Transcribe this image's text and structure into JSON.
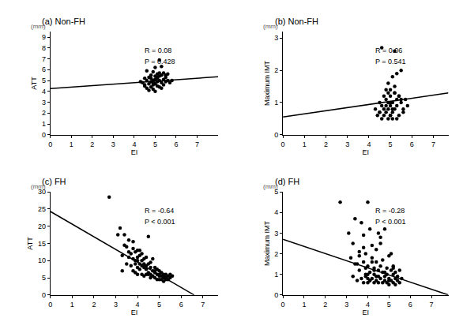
{
  "chart_data": [
    {
      "type": "scatter",
      "title": "(a) Non-FH",
      "x_label": "EI",
      "y_label": "ATT",
      "y_unit": "(mm)",
      "annotations": [
        "R = 0.08",
        "P = 0.428"
      ],
      "xlim": [
        0,
        8
      ],
      "xticks": [
        0,
        1,
        2,
        3,
        4,
        5,
        6,
        7
      ],
      "ylim": [
        0,
        9.5
      ],
      "yticks": [
        0,
        1,
        2,
        3,
        4,
        5,
        6,
        7,
        8,
        9
      ],
      "series": [
        {
          "type": "scatter",
          "marker": "circle",
          "color": "#000000",
          "x": [
            4.3,
            4.4,
            4.5,
            4.5,
            4.6,
            4.6,
            4.7,
            4.7,
            4.7,
            4.8,
            4.8,
            4.8,
            4.9,
            4.9,
            4.9,
            4.9,
            5.0,
            5.0,
            5.0,
            5.0,
            5.1,
            5.1,
            5.1,
            5.1,
            5.2,
            5.2,
            5.2,
            5.3,
            5.3,
            5.3,
            5.4,
            5.4,
            5.5,
            5.5,
            5.6,
            5.6,
            5.7,
            5.8,
            4.6,
            5.0,
            5.2,
            4.8,
            5.3,
            5.1,
            4.9,
            5.4,
            4.5,
            5.0,
            5.2,
            5.5
          ],
          "values": [
            4.9,
            4.8,
            5.2,
            4.5,
            5.0,
            4.3,
            4.7,
            5.3,
            4.1,
            4.9,
            5.5,
            4.4,
            5.0,
            4.6,
            5.8,
            4.2,
            5.1,
            4.7,
            5.4,
            6.2,
            4.9,
            5.6,
            4.5,
            5.2,
            5.0,
            5.7,
            4.4,
            4.8,
            5.5,
            6.3,
            5.1,
            4.6,
            5.3,
            4.9,
            5.0,
            5.6,
            4.8,
            5.0,
            5.9,
            4.0,
            6.9,
            5.2,
            4.3,
            5.3,
            4.8,
            5.7,
            4.6,
            5.1,
            5.4,
            5.5
          ]
        },
        {
          "type": "line",
          "line_style": "solid",
          "color": "#000000",
          "x": [
            0,
            8
          ],
          "values": [
            4.25,
            5.35
          ]
        }
      ]
    },
    {
      "type": "scatter",
      "title": "(b) Non-FH",
      "x_label": "EI",
      "y_label": "Maximum IMT",
      "y_unit": "(mm)",
      "annotations": [
        "R = 0.06",
        "P = 0.541"
      ],
      "xlim": [
        0,
        7.7
      ],
      "xticks": [
        0,
        1,
        2,
        3,
        4,
        5,
        6,
        7
      ],
      "ylim": [
        0,
        3.2
      ],
      "yticks": [
        0,
        1,
        2,
        3
      ],
      "series": [
        {
          "type": "scatter",
          "marker": "circle",
          "color": "#000000",
          "x": [
            4.3,
            4.4,
            4.5,
            4.5,
            4.6,
            4.6,
            4.7,
            4.7,
            4.7,
            4.8,
            4.8,
            4.8,
            4.9,
            4.9,
            4.9,
            4.9,
            5.0,
            5.0,
            5.0,
            5.0,
            5.1,
            5.1,
            5.1,
            5.1,
            5.2,
            5.2,
            5.2,
            5.3,
            5.3,
            5.3,
            5.4,
            5.4,
            5.5,
            5.5,
            5.6,
            5.6,
            5.7,
            5.8,
            4.6,
            5.0,
            5.2,
            4.8,
            5.3,
            5.1,
            4.9,
            5.4,
            4.5,
            5.0,
            5.2,
            5.5
          ],
          "values": [
            0.8,
            0.6,
            1.0,
            0.7,
            0.9,
            0.5,
            1.2,
            0.8,
            0.6,
            1.1,
            0.9,
            0.7,
            1.3,
            0.5,
            1.0,
            0.8,
            1.4,
            0.6,
            1.2,
            0.9,
            1.8,
            0.7,
            1.0,
            0.5,
            1.3,
            2.6,
            0.8,
            1.1,
            0.9,
            1.9,
            0.6,
            1.2,
            1.0,
            2.0,
            0.7,
            0.8,
            1.1,
            0.9,
            2.7,
            0.6,
            1.5,
            1.4,
            0.5,
            0.8,
            1.6,
            1.2,
            0.7,
            1.0,
            1.3,
            1.1
          ]
        },
        {
          "type": "line",
          "line_style": "solid",
          "color": "#000000",
          "x": [
            0,
            7.7
          ],
          "values": [
            0.55,
            1.3
          ]
        }
      ]
    },
    {
      "type": "scatter",
      "title": "(c) FH",
      "x_label": "EI",
      "y_label": "ATT",
      "y_unit": "(mm)",
      "annotations": [
        "R = -0.64",
        "P < 0.001"
      ],
      "xlim": [
        0,
        7.7
      ],
      "xticks": [
        0,
        1,
        2,
        3,
        4,
        5,
        6,
        7
      ],
      "ylim": [
        0,
        30
      ],
      "yticks": [
        0,
        5,
        10,
        15,
        20,
        25,
        30
      ],
      "series": [
        {
          "type": "scatter",
          "marker": "circle",
          "color": "#000000",
          "x": [
            2.7,
            3.1,
            3.2,
            3.3,
            3.3,
            3.4,
            3.5,
            3.5,
            3.6,
            3.6,
            3.7,
            3.7,
            3.8,
            3.8,
            3.8,
            3.9,
            3.9,
            3.9,
            4.0,
            4.0,
            4.0,
            4.0,
            4.1,
            4.1,
            4.1,
            4.2,
            4.2,
            4.2,
            4.3,
            4.3,
            4.3,
            4.4,
            4.4,
            4.4,
            4.5,
            4.5,
            4.5,
            4.6,
            4.6,
            4.6,
            4.7,
            4.7,
            4.7,
            4.8,
            4.8,
            4.8,
            4.9,
            4.9,
            4.9,
            5.0,
            5.0,
            5.0,
            5.1,
            5.1,
            5.1,
            5.2,
            5.2,
            5.2,
            5.3,
            5.3,
            5.3,
            5.4,
            5.4,
            5.5,
            5.5,
            5.6,
            3.4,
            3.6,
            3.8,
            4.0,
            4.2,
            4.4,
            4.6,
            4.8,
            5.0,
            5.2,
            3.9,
            4.1,
            4.3,
            4.5
          ],
          "values": [
            28.5,
            17.5,
            19.5,
            11.5,
            7.0,
            17.5,
            14.0,
            9.0,
            16.0,
            11.0,
            12.0,
            8.5,
            15.5,
            10.5,
            7.0,
            12.5,
            9.0,
            6.5,
            13.0,
            10.0,
            8.0,
            6.0,
            11.5,
            9.0,
            7.5,
            12.0,
            8.5,
            6.0,
            10.5,
            8.0,
            5.5,
            11.0,
            7.5,
            6.0,
            17.0,
            9.0,
            6.5,
            8.0,
            6.0,
            5.0,
            10.5,
            7.0,
            5.5,
            8.0,
            6.5,
            5.0,
            7.5,
            6.0,
            4.5,
            7.0,
            5.5,
            4.5,
            6.5,
            5.5,
            4.5,
            6.0,
            5.0,
            4.0,
            6.0,
            5.0,
            4.5,
            5.5,
            4.5,
            6.0,
            5.0,
            5.5,
            14.5,
            12.5,
            13.5,
            11.0,
            10.0,
            8.5,
            9.5,
            7.0,
            6.0,
            5.5,
            10.0,
            13.0,
            9.0,
            6.0
          ]
        },
        {
          "type": "line",
          "line_style": "solid",
          "color": "#000000",
          "x": [
            0,
            6.6
          ],
          "values": [
            24.3,
            0
          ]
        }
      ]
    },
    {
      "type": "scatter",
      "title": "(d) FH",
      "x_label": "EI",
      "y_label": "Maximum IMT",
      "y_unit": "(mm)",
      "annotations": [
        "R = -0.28",
        "P < 0.001"
      ],
      "xlim": [
        0,
        7.8
      ],
      "xticks": [
        0,
        1,
        2,
        3,
        4,
        5,
        6,
        7
      ],
      "ylim": [
        0,
        5
      ],
      "yticks": [
        0,
        1,
        2,
        3,
        4,
        5
      ],
      "series": [
        {
          "type": "scatter",
          "marker": "circle",
          "color": "#000000",
          "x": [
            2.7,
            3.1,
            3.2,
            3.3,
            3.3,
            3.4,
            3.5,
            3.5,
            3.6,
            3.6,
            3.7,
            3.7,
            3.8,
            3.8,
            3.8,
            3.9,
            3.9,
            3.9,
            4.0,
            4.0,
            4.0,
            4.0,
            4.1,
            4.1,
            4.1,
            4.2,
            4.2,
            4.2,
            4.3,
            4.3,
            4.3,
            4.4,
            4.4,
            4.4,
            4.5,
            4.5,
            4.5,
            4.6,
            4.6,
            4.6,
            4.7,
            4.7,
            4.7,
            4.8,
            4.8,
            4.8,
            4.9,
            4.9,
            4.9,
            5.0,
            5.0,
            5.0,
            5.1,
            5.1,
            5.1,
            5.2,
            5.2,
            5.2,
            5.3,
            5.3,
            5.3,
            5.4,
            5.4,
            5.5,
            5.5,
            5.6,
            3.4,
            3.6,
            3.8,
            4.0,
            4.2,
            4.4,
            4.6,
            4.8,
            5.0,
            5.2,
            3.9,
            4.1,
            4.3,
            4.5
          ],
          "values": [
            4.5,
            3.0,
            1.8,
            2.5,
            0.9,
            3.7,
            1.5,
            0.7,
            2.1,
            1.2,
            3.5,
            0.8,
            1.6,
            2.9,
            0.6,
            1.3,
            2.0,
            0.9,
            4.5,
            1.0,
            1.4,
            0.6,
            3.2,
            1.1,
            0.7,
            1.8,
            2.4,
            0.8,
            1.3,
            0.6,
            1.0,
            1.6,
            0.7,
            2.2,
            3.0,
            1.2,
            0.6,
            1.4,
            0.8,
            2.5,
            1.1,
            0.6,
            1.7,
            0.9,
            3.2,
            0.7,
            1.3,
            0.6,
            1.0,
            1.9,
            0.8,
            0.5,
            1.2,
            0.7,
            2.0,
            1.0,
            0.6,
            1.3,
            0.8,
            0.5,
            1.1,
            0.7,
            0.9,
            1.2,
            0.6,
            0.8,
            1.5,
            1.9,
            2.3,
            0.8,
            1.6,
            0.9,
            2.8,
            1.1,
            0.7,
            1.4,
            1.0,
            0.7,
            1.2,
            0.9
          ]
        },
        {
          "type": "line",
          "line_style": "solid",
          "color": "#000000",
          "x": [
            0,
            7.8
          ],
          "values": [
            2.7,
            0
          ]
        }
      ]
    }
  ]
}
